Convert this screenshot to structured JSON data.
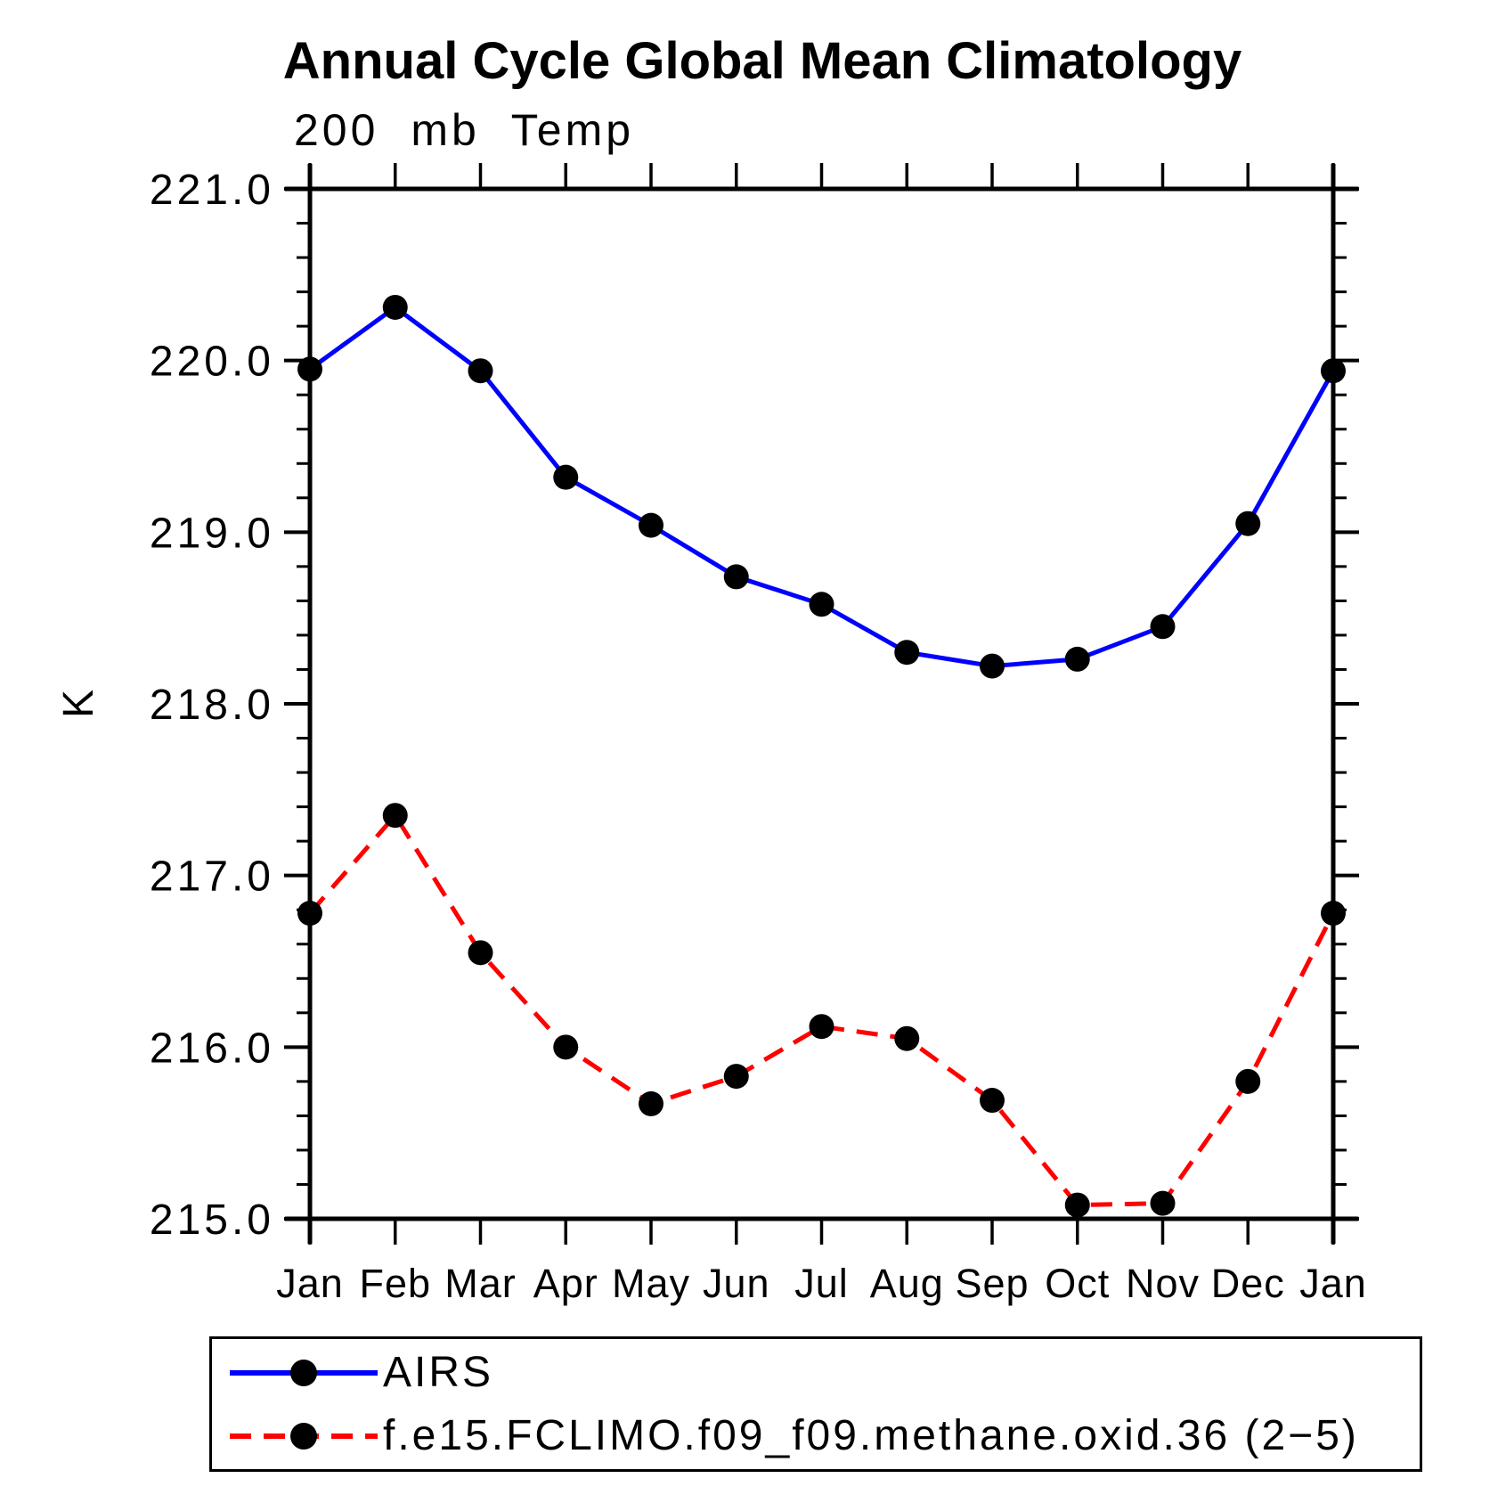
{
  "title": "Annual Cycle Global Mean Climatology",
  "subtitle": "200 mb Temp",
  "y_axis": {
    "unit": "K",
    "tick_labels": [
      "221.0",
      "220.0",
      "219.0",
      "218.0",
      "217.0",
      "216.0",
      "215.0"
    ]
  },
  "x_axis": {
    "tick_labels": [
      "Jan",
      "Feb",
      "Mar",
      "Apr",
      "May",
      "Jun",
      "Jul",
      "Aug",
      "Sep",
      "Oct",
      "Nov",
      "Dec",
      "Jan"
    ]
  },
  "colors": {
    "airs_line": "#0000ff",
    "model_line": "#ff0000",
    "marker": "#000000",
    "axis": "#000000",
    "background": "#ffffff"
  },
  "chart_data": {
    "type": "line",
    "title": "Annual Cycle Global Mean Climatology",
    "subtitle": "200 mb Temp",
    "ylabel": "K",
    "xlabel": "",
    "ylim": [
      215.0,
      221.0
    ],
    "ytick_major_step": 1.0,
    "ytick_minor_step": 0.2,
    "grid": false,
    "legend_position": "bottom",
    "categories": [
      "Jan",
      "Feb",
      "Mar",
      "Apr",
      "May",
      "Jun",
      "Jul",
      "Aug",
      "Sep",
      "Oct",
      "Nov",
      "Dec",
      "Jan"
    ],
    "series": [
      {
        "name": "AIRS",
        "color": "#0000ff",
        "line_style": "solid",
        "marker": "filled-circle",
        "values": [
          219.95,
          220.31,
          219.94,
          219.32,
          219.04,
          218.74,
          218.58,
          218.3,
          218.22,
          218.26,
          218.45,
          219.05,
          219.94
        ]
      },
      {
        "name": "f.e15.FCLIMO.f09_f09.methane.oxid.36 (2−5)",
        "color": "#ff0000",
        "line_style": "dashed",
        "marker": "filled-circle",
        "values": [
          216.78,
          217.35,
          216.55,
          216.0,
          215.67,
          215.83,
          216.12,
          216.05,
          215.69,
          215.08,
          215.09,
          215.8,
          216.78
        ]
      }
    ]
  }
}
